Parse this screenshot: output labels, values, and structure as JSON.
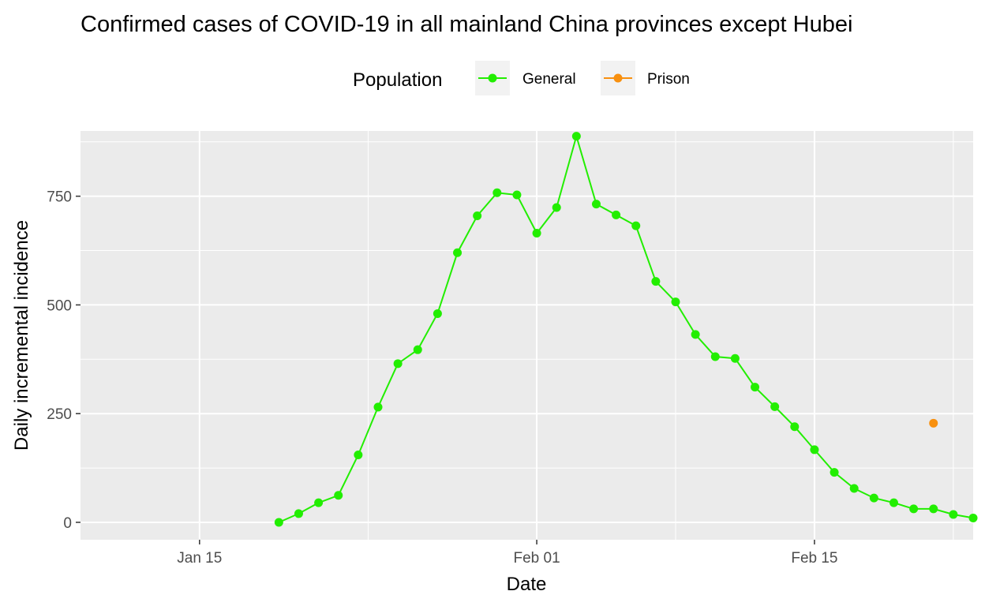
{
  "chart_data": {
    "type": "line",
    "title": "Confirmed cases of COVID-19 in all mainland China provinces except Hubei",
    "xlabel": "Date",
    "ylabel": "Daily incremental incidence",
    "x_axis": {
      "type": "date",
      "range": [
        "2020-01-09",
        "2020-02-23"
      ],
      "ticks": [
        {
          "date": "2020-01-15",
          "label": "Jan 15"
        },
        {
          "date": "2020-02-01",
          "label": "Feb 01"
        },
        {
          "date": "2020-02-15",
          "label": "Feb 15"
        }
      ]
    },
    "y_axis": {
      "range": [
        -40,
        900
      ],
      "ticks": [
        0,
        250,
        500,
        750
      ]
    },
    "grid": true,
    "legend": {
      "title": "Population",
      "position": "top"
    },
    "series": [
      {
        "name": "General",
        "color": "#22ee00",
        "x": [
          "2020-01-19",
          "2020-01-20",
          "2020-01-21",
          "2020-01-22",
          "2020-01-23",
          "2020-01-24",
          "2020-01-25",
          "2020-01-26",
          "2020-01-27",
          "2020-01-28",
          "2020-01-29",
          "2020-01-30",
          "2020-01-31",
          "2020-02-01",
          "2020-02-02",
          "2020-02-03",
          "2020-02-04",
          "2020-02-05",
          "2020-02-06",
          "2020-02-07",
          "2020-02-08",
          "2020-02-09",
          "2020-02-10",
          "2020-02-11",
          "2020-02-12",
          "2020-02-13",
          "2020-02-14",
          "2020-02-15",
          "2020-02-16",
          "2020-02-17",
          "2020-02-18",
          "2020-02-19",
          "2020-02-20",
          "2020-02-21",
          "2020-02-22",
          "2020-02-23"
        ],
        "values": [
          0,
          20,
          45,
          62,
          155,
          265,
          365,
          397,
          480,
          620,
          705,
          758,
          753,
          665,
          724,
          888,
          732,
          707,
          682,
          554,
          507,
          432,
          381,
          377,
          311,
          266,
          220,
          167,
          115,
          78,
          56,
          45,
          31,
          31,
          18,
          10
        ]
      },
      {
        "name": "Prison",
        "color": "#f8900f",
        "x": [
          "2020-02-21"
        ],
        "values": [
          228
        ]
      }
    ]
  }
}
